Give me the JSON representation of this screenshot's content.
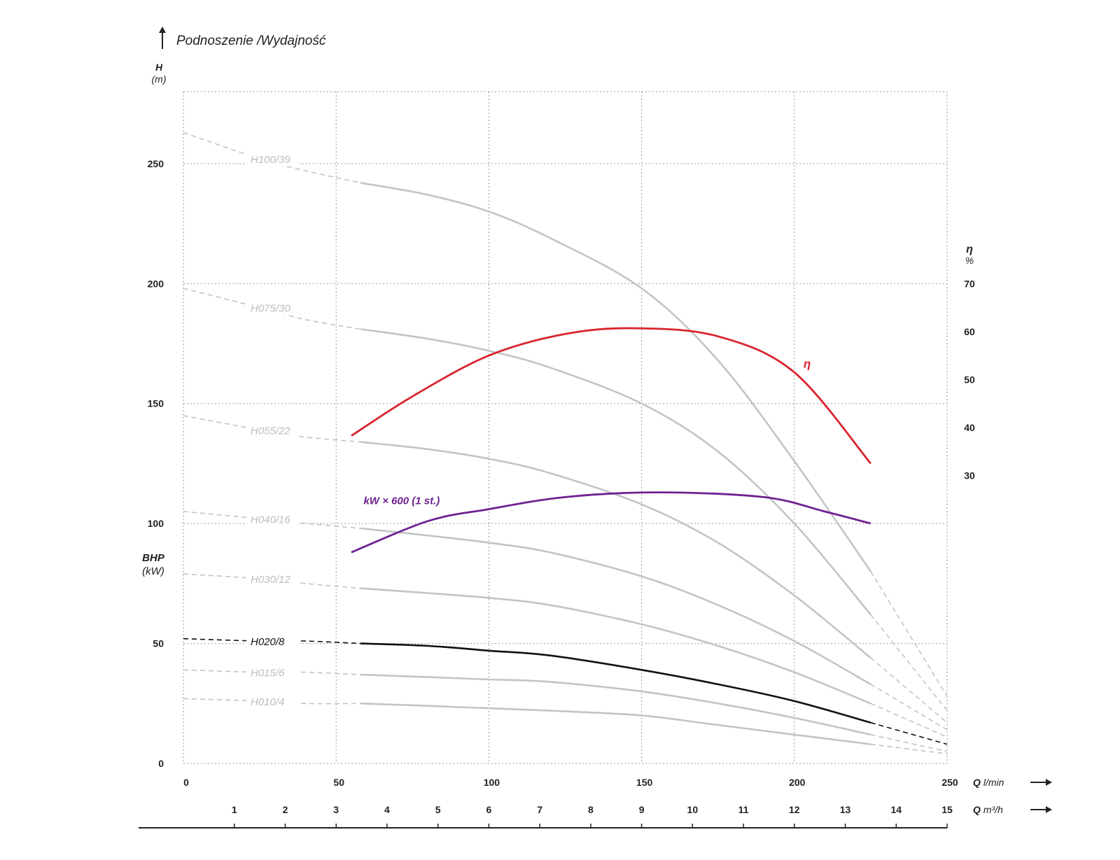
{
  "chart_data": {
    "type": "line",
    "title": "Podnoszenie /Wydajność",
    "y_left": {
      "label": "H",
      "unit": "(m)",
      "range": [
        0,
        280
      ],
      "ticks": [
        0,
        50,
        100,
        150,
        200,
        250
      ]
    },
    "y_left_secondary": {
      "label": "BHP",
      "unit": "(kW)"
    },
    "y_right": {
      "label": "η",
      "unit": "%",
      "range": [
        0,
        70
      ],
      "ticks": [
        30,
        40,
        50,
        60,
        70
      ]
    },
    "x_primary": {
      "label": "Q",
      "unit": "l/min",
      "range": [
        0,
        250
      ],
      "ticks": [
        0,
        50,
        100,
        150,
        200,
        250
      ]
    },
    "x_secondary": {
      "label": "Q",
      "unit": "m³/h",
      "range": [
        0,
        15
      ],
      "ticks": [
        1,
        2,
        3,
        4,
        5,
        6,
        7,
        8,
        9,
        10,
        11,
        12,
        13,
        14,
        15
      ]
    },
    "grid": true,
    "series": [
      {
        "name": "H100/39",
        "axis": "left",
        "color": "#c4c4c4",
        "solid_range": [
          58,
          225
        ],
        "x": [
          0,
          25,
          40,
          58,
          80,
          100,
          120,
          150,
          175,
          200,
          225,
          250
        ],
        "y": [
          263,
          252,
          247,
          242,
          237,
          230,
          219,
          198,
          168,
          126,
          80,
          28
        ]
      },
      {
        "name": "H075/30",
        "axis": "left",
        "color": "#c4c4c4",
        "solid_range": [
          58,
          225
        ],
        "x": [
          0,
          25,
          40,
          58,
          80,
          100,
          120,
          150,
          175,
          200,
          225,
          250
        ],
        "y": [
          198,
          190,
          185,
          181,
          177,
          172,
          165,
          150,
          130,
          100,
          62,
          22
        ]
      },
      {
        "name": "H055/22",
        "axis": "left",
        "color": "#c4c4c4",
        "solid_range": [
          58,
          225
        ],
        "x": [
          0,
          25,
          40,
          58,
          80,
          100,
          120,
          150,
          175,
          200,
          225,
          250
        ],
        "y": [
          145,
          139,
          136,
          134,
          131,
          127,
          121,
          108,
          92,
          70,
          44,
          17
        ]
      },
      {
        "name": "H040/16",
        "axis": "left",
        "color": "#c4c4c4",
        "solid_range": [
          58,
          225
        ],
        "x": [
          0,
          25,
          40,
          58,
          80,
          100,
          120,
          150,
          175,
          200,
          225,
          250
        ],
        "y": [
          105,
          102,
          100,
          98,
          95,
          92,
          88,
          78,
          66,
          51,
          33,
          14
        ]
      },
      {
        "name": "H030/12",
        "axis": "left",
        "color": "#c4c4c4",
        "solid_range": [
          58,
          225
        ],
        "x": [
          0,
          25,
          40,
          58,
          80,
          100,
          120,
          150,
          175,
          200,
          225,
          250
        ],
        "y": [
          79,
          77,
          75,
          73,
          71,
          69,
          66,
          58,
          49,
          38,
          25,
          11
        ]
      },
      {
        "name": "H020/8",
        "axis": "left",
        "color": "#111111",
        "solid_range": [
          58,
          225
        ],
        "x": [
          0,
          25,
          40,
          58,
          80,
          100,
          120,
          150,
          175,
          200,
          225,
          250
        ],
        "y": [
          52,
          51,
          51,
          50,
          49,
          47,
          45,
          39,
          33,
          26,
          17,
          8
        ]
      },
      {
        "name": "H015/6",
        "axis": "left",
        "color": "#c4c4c4",
        "solid_range": [
          58,
          225
        ],
        "x": [
          0,
          25,
          40,
          58,
          80,
          100,
          120,
          150,
          175,
          200,
          225,
          250
        ],
        "y": [
          39,
          38,
          38,
          37,
          36,
          35,
          34,
          30,
          25,
          19,
          12,
          5
        ]
      },
      {
        "name": "H010/4",
        "axis": "left",
        "color": "#c4c4c4",
        "solid_range": [
          58,
          225
        ],
        "x": [
          0,
          25,
          40,
          58,
          80,
          100,
          120,
          150,
          175,
          200,
          225,
          250
        ],
        "y": [
          27,
          26,
          25,
          25,
          24,
          23,
          22,
          20,
          16,
          12,
          8,
          4
        ]
      },
      {
        "name": "η",
        "axis": "right",
        "color": "#d9232d",
        "solid_range": [
          55,
          225
        ],
        "x": [
          55,
          75,
          100,
          125,
          148,
          175,
          200,
          225
        ],
        "y": [
          38.3,
          46.5,
          55,
          59.5,
          60.7,
          59,
          51.5,
          32.5
        ]
      },
      {
        "name": "kW × 600 (1 st.)",
        "axis": "left",
        "color": "#6f2191",
        "solid_range": [
          55,
          225
        ],
        "x": [
          55,
          80,
          100,
          125,
          155,
          190,
          210,
          225
        ],
        "y": [
          88,
          101,
          106,
          111,
          113,
          111,
          105,
          100
        ]
      }
    ]
  }
}
